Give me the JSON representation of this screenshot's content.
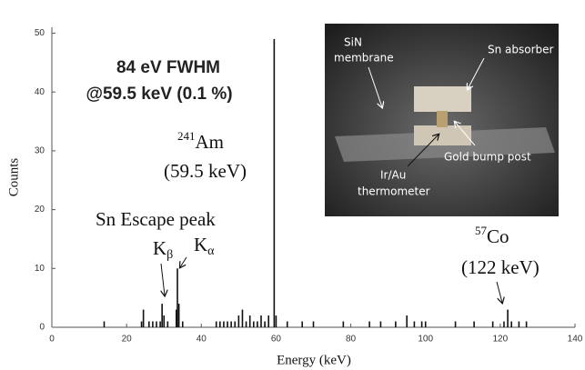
{
  "chart_data": {
    "type": "bar",
    "x_label": "Energy (keV)",
    "y_label": "Counts",
    "color": "#111111",
    "x": [
      14,
      24,
      24.5,
      26,
      27,
      28,
      29,
      29.5,
      30,
      31,
      33.3,
      33.6,
      34,
      35,
      44,
      45,
      46,
      47,
      48,
      49,
      50,
      51,
      52,
      53,
      54,
      55,
      56,
      57,
      58,
      59.5,
      60,
      63,
      67,
      70,
      78,
      85,
      88,
      92,
      95,
      97,
      99,
      100,
      108,
      113,
      118,
      121,
      122,
      123,
      125,
      127
    ],
    "values": [
      1,
      1,
      3,
      1,
      1,
      1,
      1,
      4,
      2,
      1,
      3,
      10,
      4,
      1,
      1,
      1,
      1,
      1,
      1,
      1,
      2,
      3,
      1,
      2,
      1,
      1,
      2,
      1,
      2,
      49,
      2,
      1,
      1,
      1,
      1,
      1,
      1,
      1,
      2,
      1,
      1,
      1,
      1,
      1,
      1,
      1,
      3,
      1,
      1,
      1
    ],
    "xlim": [
      0,
      140
    ],
    "xticks": [
      0,
      20,
      40,
      60,
      80,
      100,
      120,
      140
    ],
    "ylim": [
      0,
      51
    ],
    "yticks": [
      0,
      10,
      20,
      30,
      40,
      50
    ],
    "annotations": {
      "fwhm": "84 eV FWHM",
      "fwhm_energy": "@59.5 keV (0.1 %)",
      "am_sup": "241",
      "am": "Am",
      "am_energy": "(59.5 keV)",
      "escape": "Sn Escape peak",
      "k_beta": "K",
      "k_beta_sub": "β",
      "k_alpha": "K",
      "k_alpha_sub": "α",
      "co_sup": "57",
      "co": "Co",
      "co_energy": "(122 keV)"
    },
    "inset": {
      "sin_1": "SiN",
      "sin_2": "membrane",
      "sn_absorber": "Sn absorber",
      "gold_bump": "Gold bump post",
      "thermo_1": "Ir/Au",
      "thermo_2": "thermometer"
    }
  }
}
